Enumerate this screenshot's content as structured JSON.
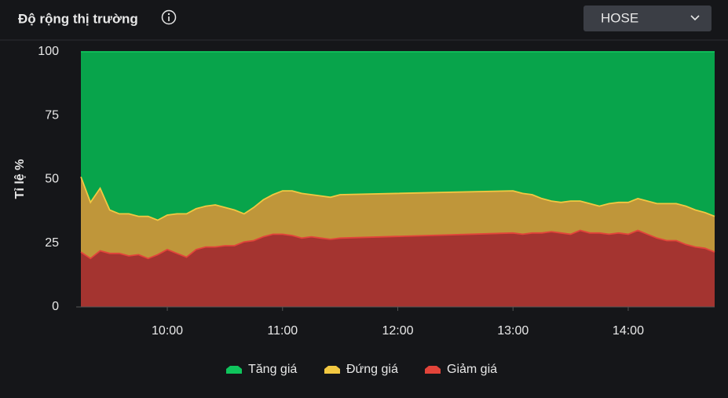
{
  "header": {
    "title": "Độ rộng thị trường",
    "dropdown": "HOSE"
  },
  "chart_data": {
    "type": "area",
    "stacked": true,
    "y_label": "Tỉ lệ %",
    "x": [
      555,
      560,
      565,
      570,
      575,
      580,
      585,
      590,
      595,
      600,
      605,
      610,
      615,
      620,
      625,
      630,
      635,
      640,
      645,
      650,
      655,
      660,
      665,
      670,
      675,
      680,
      685,
      690,
      780,
      785,
      790,
      795,
      800,
      805,
      810,
      815,
      820,
      825,
      830,
      835,
      840,
      845,
      850,
      855,
      860,
      865,
      870,
      875,
      880,
      885
    ],
    "xlim": [
      555,
      885
    ],
    "xticks": [
      {
        "value": 600,
        "label": "10:00"
      },
      {
        "value": 660,
        "label": "11:00"
      },
      {
        "value": 720,
        "label": "12:00"
      },
      {
        "value": 780,
        "label": "13:00"
      },
      {
        "value": 840,
        "label": "14:00"
      }
    ],
    "ylim": [
      0,
      100
    ],
    "yticks": [
      0,
      25,
      50,
      75,
      100
    ],
    "grid": false,
    "legend": "bottom",
    "series": [
      {
        "name": "Tăng giá",
        "color": "#08a44b",
        "line_color": "#0fc45c",
        "values": [
          49,
          59,
          53.5,
          62,
          63.5,
          63.5,
          64.5,
          64.5,
          66,
          64,
          63.5,
          63.5,
          61.5,
          60.5,
          60,
          61,
          62,
          63.5,
          61,
          58,
          56,
          54.5,
          54.5,
          55.5,
          56,
          56.5,
          57,
          56,
          54.5,
          55.5,
          56,
          57.5,
          58.5,
          59,
          58.5,
          58.5,
          59.5,
          60.5,
          59.5,
          59,
          59,
          57.5,
          58.5,
          59.5,
          59.5,
          59.5,
          60.5,
          62,
          63,
          64.5
        ]
      },
      {
        "name": "Đứng giá",
        "color": "#bf963a",
        "line_color": "#f2c841",
        "values": [
          29.5,
          22,
          24.5,
          17,
          15.5,
          16.5,
          15,
          16.5,
          13.5,
          13.5,
          15.5,
          17,
          16,
          16,
          16.5,
          15,
          14,
          11,
          13,
          14.5,
          15.5,
          17,
          17.5,
          17.5,
          16.5,
          16.5,
          16.5,
          17,
          16.5,
          16,
          15,
          13.5,
          12,
          12,
          13,
          11.5,
          11.5,
          10.5,
          12,
          12,
          12.5,
          12.5,
          13,
          13.5,
          14.5,
          14.5,
          15,
          14.5,
          14,
          14
        ]
      },
      {
        "name": "Giảm giá",
        "color": "#a43430",
        "line_color": "#e2443a",
        "values": [
          21.5,
          19,
          22,
          21,
          21,
          20,
          20.5,
          19,
          20.5,
          22.5,
          21,
          19.5,
          22.5,
          23.5,
          23.5,
          24,
          24,
          25.5,
          26,
          27.5,
          28.5,
          28.5,
          28,
          27,
          27.5,
          27,
          26.5,
          27,
          29,
          28.5,
          29,
          29,
          29.5,
          29,
          28.5,
          30,
          29,
          29,
          28.5,
          29,
          28.5,
          30,
          28.5,
          27,
          26,
          26,
          24.5,
          23.5,
          23,
          21.5
        ]
      }
    ]
  }
}
